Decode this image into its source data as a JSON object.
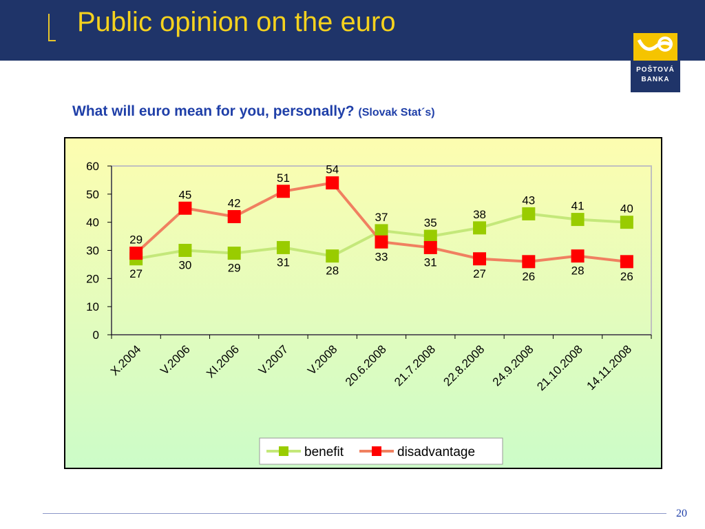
{
  "slide": {
    "title": "Public opinion on the euro",
    "page_number": "20"
  },
  "logo": {
    "line1": "POŠTOVÁ",
    "line2": "BANKA",
    "top_color": "#f5c400",
    "bg_color": "#1f3469"
  },
  "subtitle": {
    "main": "What will euro mean for you, personally?",
    "source": "(Slovak Stat´s)"
  },
  "colors": {
    "header_bg": "#1f3469",
    "title": "#f5d21e",
    "subtitle": "#1f3fa8"
  },
  "chart_data": {
    "type": "line",
    "categories": [
      "X.2004",
      "V.2006",
      "XI.2006",
      "V.2007",
      "V.2008",
      "20.6.2008",
      "21.7.2008",
      "22.8.2008",
      "24.9.2008",
      "21.10.2008",
      "14.11.2008"
    ],
    "series": [
      {
        "name": "benefit",
        "color": "#99cc00",
        "line_color": "#c4e87a",
        "values": [
          27,
          30,
          29,
          31,
          28,
          37,
          35,
          38,
          43,
          41,
          40
        ]
      },
      {
        "name": "disadvantage",
        "color": "#ff0000",
        "line_color": "#f08060",
        "values": [
          29,
          45,
          42,
          51,
          54,
          33,
          31,
          27,
          26,
          28,
          26
        ]
      }
    ],
    "ylim": [
      0,
      60
    ],
    "yticks": [
      0,
      10,
      20,
      30,
      40,
      50,
      60
    ],
    "grid": false,
    "legend": "bottom",
    "xlabel": "",
    "ylabel": ""
  }
}
